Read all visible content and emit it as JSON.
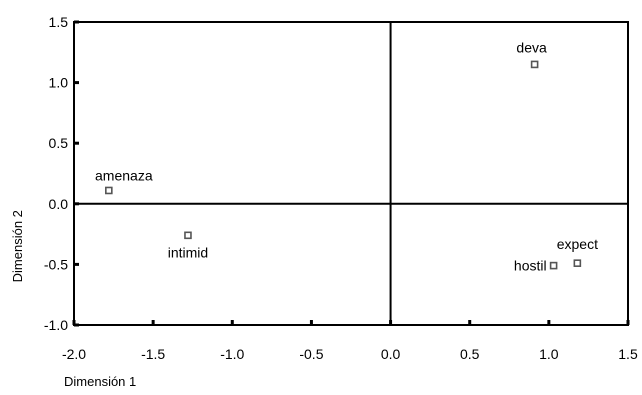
{
  "chart_data": {
    "type": "scatter",
    "title": "",
    "xlabel": "Dimensión 1",
    "ylabel": "Dimensión 2",
    "xlim": [
      -2.0,
      1.5
    ],
    "ylim": [
      -1.0,
      1.5
    ],
    "x_ticks": [
      -2.0,
      -1.5,
      -1.0,
      -0.5,
      0.0,
      0.5,
      1.0,
      1.5
    ],
    "y_ticks": [
      -1.0,
      -0.5,
      0.0,
      0.5,
      1.0,
      1.5
    ],
    "x_tick_labels": [
      "-2.0",
      "-1.5",
      "-1.0",
      "-0.5",
      "0.0",
      "0.5",
      "1.0",
      "1.5"
    ],
    "y_tick_labels": [
      "-1.0",
      "-0.5",
      "0.0",
      "0.5",
      "1.0",
      "1.5"
    ],
    "grid": false,
    "reference_lines": {
      "x": 0.0,
      "y": 0.0
    },
    "points": [
      {
        "label": "deva",
        "x": 0.91,
        "y": 1.15
      },
      {
        "label": "amenaza",
        "x": -1.78,
        "y": 0.11
      },
      {
        "label": "intimid",
        "x": -1.28,
        "y": -0.26
      },
      {
        "label": "expect",
        "x": 1.18,
        "y": -0.49
      },
      {
        "label": "hostil",
        "x": 1.03,
        "y": -0.51
      }
    ]
  }
}
